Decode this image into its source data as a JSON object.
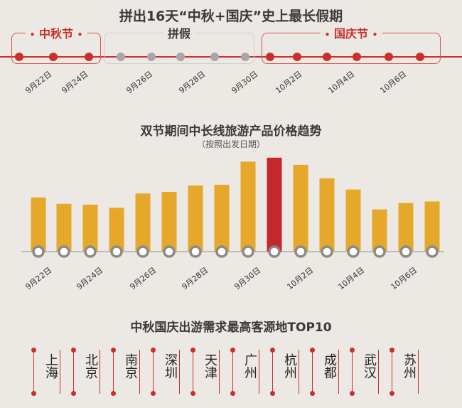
{
  "header": {
    "title": "拼出16天“中秋+国庆”史上最长假期"
  },
  "timeline": {
    "groups": [
      {
        "label": "中秋节",
        "style": "red"
      },
      {
        "label": "拼假",
        "style": "grey"
      },
      {
        "label": "国庆节",
        "style": "red"
      }
    ],
    "dates": [
      "9月22日",
      "9月24日",
      "9月26日",
      "9月28日",
      "9月30日",
      "10月2日",
      "10月4日",
      "10月6日"
    ]
  },
  "chart_data": {
    "type": "bar",
    "title": "双节期间中长线旅游产品价格趋势",
    "subtitle": "（按照出发日期）",
    "values": [
      68,
      60,
      59,
      55,
      73,
      75,
      83,
      84,
      113,
      118,
      109,
      92,
      78,
      53,
      61,
      63
    ],
    "highlight_index": 9,
    "tick_labels": [
      "9月22日",
      "9月24日",
      "9月26日",
      "9月28日",
      "9月30日",
      "10月2日",
      "10月4日",
      "10月6日"
    ],
    "colors": {
      "bar": "#e5a82a",
      "highlight": "#c4282c",
      "dot": "#8a8a8a"
    }
  },
  "cities": {
    "title": "中秋国庆出游需求最高客源地TOP10",
    "items": [
      "上海",
      "北京",
      "南京",
      "深圳",
      "天津",
      "广州",
      "杭州",
      "成都",
      "武汉",
      "苏州"
    ]
  },
  "colors": {
    "accent": "#c9302c",
    "grey": "#a7a7a7",
    "bg": "#ece8e3"
  }
}
